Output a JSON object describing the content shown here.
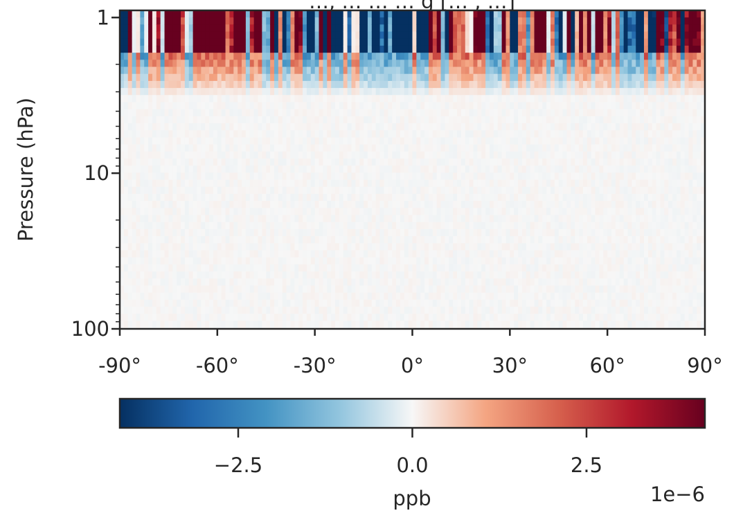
{
  "chart_data": {
    "type": "heatmap",
    "title": "…, … … … g [… , …]",
    "xlabel": "",
    "ylabel": "Pressure (hPa)",
    "x_ticks": [
      {
        "value": -90,
        "label": "-90°"
      },
      {
        "value": -60,
        "label": "-60°"
      },
      {
        "value": -30,
        "label": "-30°"
      },
      {
        "value": 0,
        "label": "0°"
      },
      {
        "value": 30,
        "label": "30°"
      },
      {
        "value": 60,
        "label": "60°"
      },
      {
        "value": 90,
        "label": "90°"
      }
    ],
    "xlim": [
      -90,
      90
    ],
    "y_scale": "log",
    "y_inverted": true,
    "ylim": [
      0.9,
      100
    ],
    "y_ticks": [
      {
        "value": 1,
        "label": "1"
      },
      {
        "value": 10,
        "label": "10"
      },
      {
        "value": 100,
        "label": "100"
      }
    ],
    "colormap": "RdBu_r",
    "colorbar": {
      "label": "ppb",
      "range": [
        -4.2e-06,
        4.2e-06
      ],
      "ticks": [
        {
          "value": -2.5e-06,
          "label": "−2.5"
        },
        {
          "value": 0,
          "label": "0.0"
        },
        {
          "value": 2.5e-06,
          "label": "2.5"
        }
      ],
      "offset_text": "1e−6"
    },
    "structure": {
      "description": "Values near zero (≈0 ppb) everywhere below ~2.5 hPa; strong alternating positive/negative anomalies of about ±4e-6 ppb in the layers above ~2 hPa, with a coherent negative block between about -25° and 5° latitude, and large positive regions between -85° and -60°.",
      "strong_layer_top_hPa": 0.9,
      "strong_layer_bottom_hPa": 1.6,
      "transition_bottom_hPa": 3.2
    }
  }
}
